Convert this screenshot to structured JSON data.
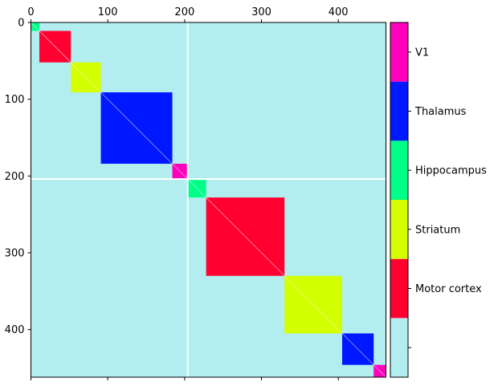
{
  "chart_data": {
    "type": "heatmap",
    "title": "",
    "matrix_size": 462,
    "background_color": "#b2edef",
    "x_ticks": [
      0,
      100,
      200,
      300,
      400
    ],
    "y_ticks": [
      0,
      100,
      200,
      300,
      400
    ],
    "x_axis_position": "top",
    "divider_at": 204,
    "blocks": [
      {
        "start": 0,
        "end": 11,
        "region": "Hippocampus"
      },
      {
        "start": 11,
        "end": 52,
        "region": "Motor cortex"
      },
      {
        "start": 52,
        "end": 91,
        "region": "Striatum"
      },
      {
        "start": 91,
        "end": 184,
        "region": "Thalamus"
      },
      {
        "start": 184,
        "end": 204,
        "region": "V1"
      },
      {
        "start": 204,
        "end": 228,
        "region": "Hippocampus"
      },
      {
        "start": 228,
        "end": 330,
        "region": "Motor cortex"
      },
      {
        "start": 330,
        "end": 405,
        "region": "Striatum"
      },
      {
        "start": 405,
        "end": 446,
        "region": "Thalamus"
      },
      {
        "start": 446,
        "end": 462,
        "region": "V1"
      }
    ],
    "colorbar": {
      "entries": [
        {
          "label": "",
          "color": "#b2edef"
        },
        {
          "label": "Motor cortex",
          "color": "#ff0030"
        },
        {
          "label": "Striatum",
          "color": "#d4ff00"
        },
        {
          "label": "Hippocampus",
          "color": "#00ff88"
        },
        {
          "label": "Thalamus",
          "color": "#0018ff"
        },
        {
          "label": "V1",
          "color": "#ff00bb"
        }
      ]
    },
    "region_colors": {
      "Motor cortex": "#ff0030",
      "Striatum": "#d4ff00",
      "Hippocampus": "#00ff88",
      "Thalamus": "#0018ff",
      "V1": "#ff00bb"
    }
  }
}
